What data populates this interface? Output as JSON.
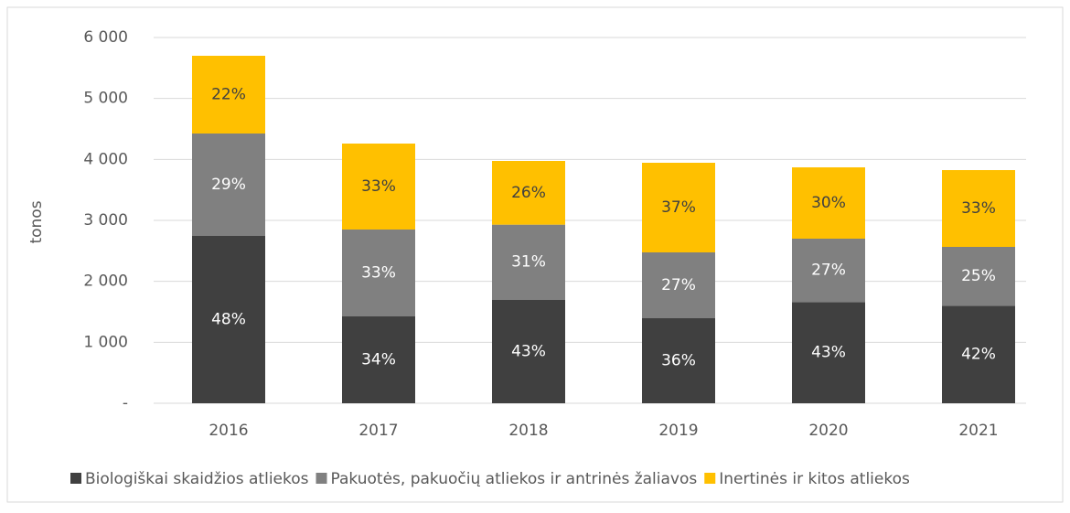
{
  "chart_data": {
    "type": "stacked_bar",
    "y_label": "tonos",
    "categories": [
      "2016",
      "2017",
      "2018",
      "2019",
      "2020",
      "2021"
    ],
    "series": [
      {
        "name": "Biologiškai skaidžios atliekos",
        "color": "#404040",
        "label_color": "#ffffff",
        "values": [
          2750,
          1425,
          1700,
          1400,
          1660,
          1600
        ],
        "value_labels": [
          "48%",
          "34%",
          "43%",
          "36%",
          "43%",
          "42%"
        ]
      },
      {
        "name": "Pakuotės, pakuočių atliekos ir antrinės žaliavos",
        "color": "#808080",
        "label_color": "#ffffff",
        "values": [
          1675,
          1425,
          1230,
          1075,
          1040,
          965
        ],
        "value_labels": [
          "29%",
          "33%",
          "31%",
          "27%",
          "27%",
          "25%"
        ]
      },
      {
        "name": "Inertinės ir kitos atliekos",
        "color": "#ffc000",
        "label_color": "#404040",
        "values": [
          1275,
          1410,
          1045,
          1470,
          1170,
          1260
        ],
        "value_labels": [
          "22%",
          "33%",
          "26%",
          "37%",
          "30%",
          "33%"
        ]
      }
    ],
    "ylim": [
      0,
      6000
    ],
    "yticks": [
      {
        "value": 0,
        "label": "-"
      },
      {
        "value": 1000,
        "label": "1 000"
      },
      {
        "value": 2000,
        "label": "2 000"
      },
      {
        "value": 3000,
        "label": "3 000"
      },
      {
        "value": 4000,
        "label": "4 000"
      },
      {
        "value": 5000,
        "label": "5 000"
      },
      {
        "value": 6000,
        "label": "6 000"
      }
    ],
    "grid": true
  }
}
